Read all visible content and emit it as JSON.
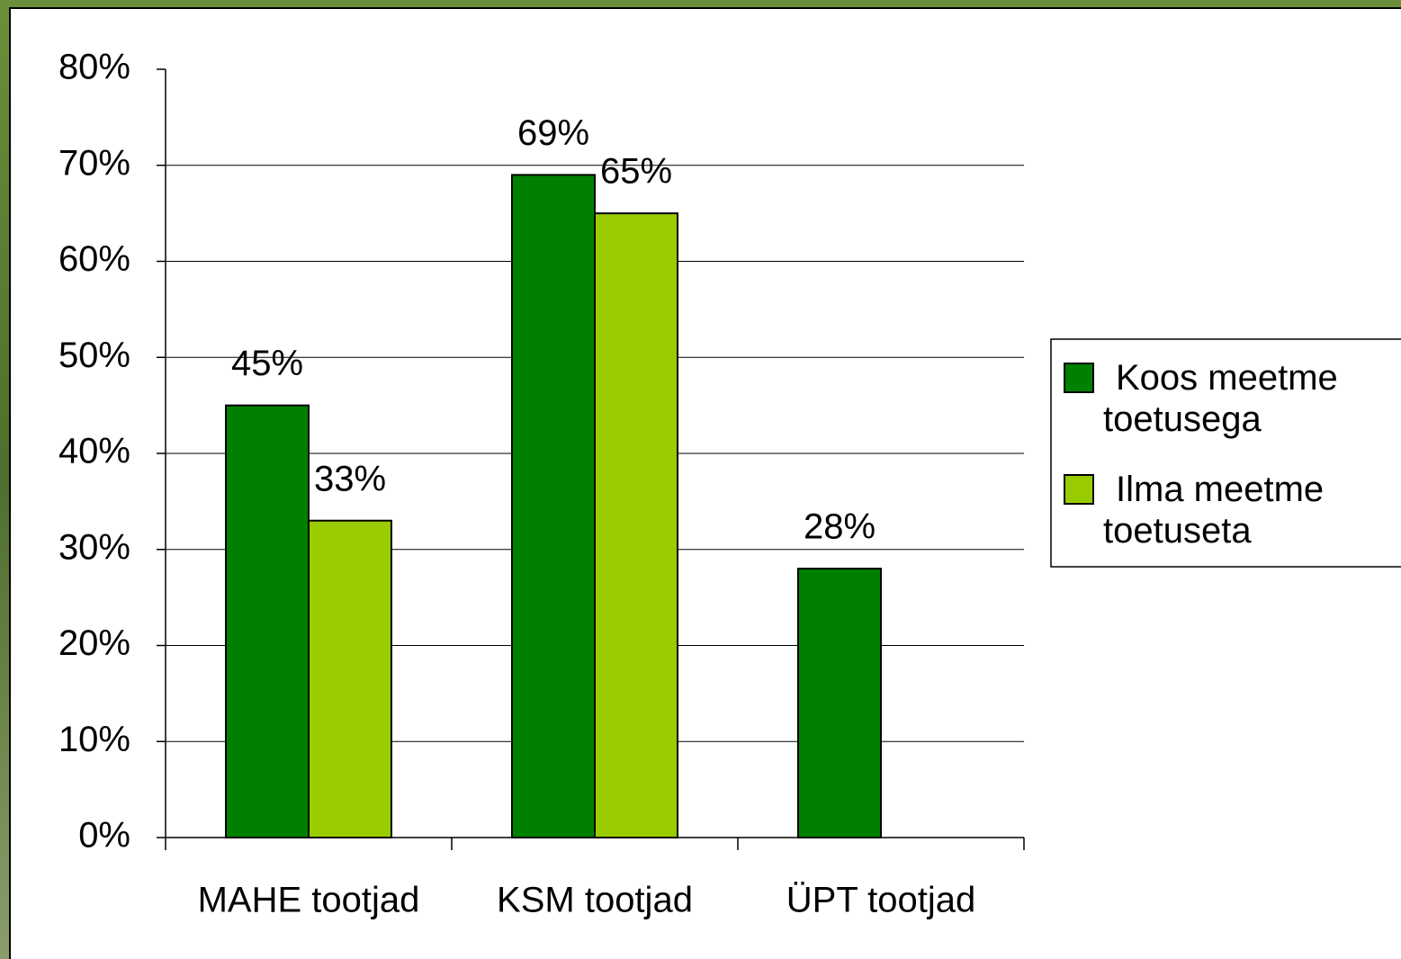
{
  "chart_data": {
    "type": "bar",
    "categories": [
      "MAHE tootjad",
      "KSM tootjad",
      "ÜPT tootjad"
    ],
    "series": [
      {
        "name": "Koos meetme toetusega",
        "color": "#008000",
        "values": [
          45,
          69,
          28
        ],
        "value_labels": [
          "45%",
          "69%",
          "28%"
        ]
      },
      {
        "name": "Ilma meetme toetuseta",
        "color": "#99cc00",
        "values": [
          33,
          65,
          null
        ],
        "value_labels": [
          "33%",
          "65%",
          null
        ]
      }
    ],
    "ylim": [
      0,
      80
    ],
    "yticks": [
      {
        "value": 0,
        "label": "0%"
      },
      {
        "value": 10,
        "label": "10%"
      },
      {
        "value": 20,
        "label": "20%"
      },
      {
        "value": 30,
        "label": "30%"
      },
      {
        "value": 40,
        "label": "40%"
      },
      {
        "value": 50,
        "label": "50%"
      },
      {
        "value": 60,
        "label": "60%"
      },
      {
        "value": 70,
        "label": "70%"
      },
      {
        "value": 80,
        "label": "80%"
      }
    ],
    "grid": true,
    "legend": "right"
  }
}
